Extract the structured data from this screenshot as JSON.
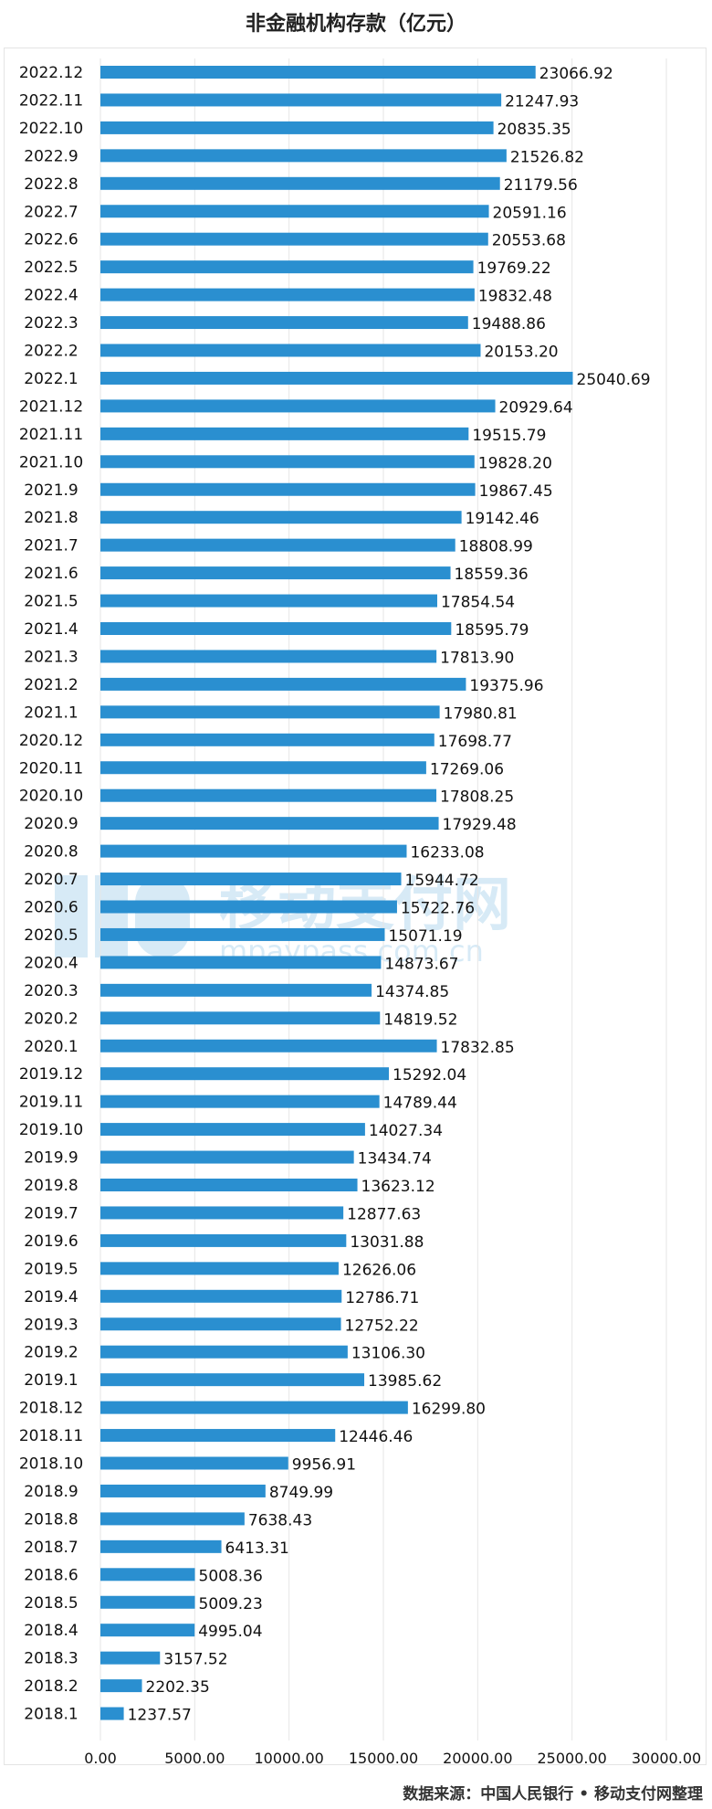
{
  "title": "非金融机构存款（亿元）",
  "source": "数据来源：中国人民银行 • 移动支付网整理",
  "watermark": {
    "brand": "移动支付网",
    "url": "mpaypass.com.cn"
  },
  "colors": {
    "bar": "#2a8fd0",
    "grid": "#e6e6e6",
    "text": "#111111"
  },
  "chart_data": {
    "type": "bar",
    "orientation": "horizontal",
    "categories": [
      "2022.12",
      "2022.11",
      "2022.10",
      "2022.9",
      "2022.8",
      "2022.7",
      "2022.6",
      "2022.5",
      "2022.4",
      "2022.3",
      "2022.2",
      "2022.1",
      "2021.12",
      "2021.11",
      "2021.10",
      "2021.9",
      "2021.8",
      "2021.7",
      "2021.6",
      "2021.5",
      "2021.4",
      "2021.3",
      "2021.2",
      "2021.1",
      "2020.12",
      "2020.11",
      "2020.10",
      "2020.9",
      "2020.8",
      "2020.7",
      "2020.6",
      "2020.5",
      "2020.4",
      "2020.3",
      "2020.2",
      "2020.1",
      "2019.12",
      "2019.11",
      "2019.10",
      "2019.9",
      "2019.8",
      "2019.7",
      "2019.6",
      "2019.5",
      "2019.4",
      "2019.3",
      "2019.2",
      "2019.1",
      "2018.12",
      "2018.11",
      "2018.10",
      "2018.9",
      "2018.8",
      "2018.7",
      "2018.6",
      "2018.5",
      "2018.4",
      "2018.3",
      "2018.2",
      "2018.1"
    ],
    "values": [
      23066.92,
      21247.93,
      20835.35,
      21526.82,
      21179.56,
      20591.16,
      20553.68,
      19769.22,
      19832.48,
      19488.86,
      20153.2,
      25040.69,
      20929.64,
      19515.79,
      19828.2,
      19867.45,
      19142.46,
      18808.99,
      18559.36,
      17854.54,
      18595.79,
      17813.9,
      19375.96,
      17980.81,
      17698.77,
      17269.06,
      17808.25,
      17929.48,
      16233.08,
      15944.72,
      15722.76,
      15071.19,
      14873.67,
      14374.85,
      14819.52,
      17832.85,
      15292.04,
      14789.44,
      14027.34,
      13434.74,
      13623.12,
      12877.63,
      13031.88,
      12626.06,
      12786.71,
      12752.22,
      13106.3,
      13985.62,
      16299.8,
      12446.46,
      9956.91,
      8749.99,
      7638.43,
      6413.31,
      5008.36,
      5009.23,
      4995.04,
      3157.52,
      2202.35,
      1237.57
    ],
    "value_labels": [
      "23066.92",
      "21247.93",
      "20835.35",
      "21526.82",
      "21179.56",
      "20591.16",
      "20553.68",
      "19769.22",
      "19832.48",
      "19488.86",
      "20153.20",
      "25040.69",
      "20929.64",
      "19515.79",
      "19828.20",
      "19867.45",
      "19142.46",
      "18808.99",
      "18559.36",
      "17854.54",
      "18595.79",
      "17813.90",
      "19375.96",
      "17980.81",
      "17698.77",
      "17269.06",
      "17808.25",
      "17929.48",
      "16233.08",
      "15944.72",
      "15722.76",
      "15071.19",
      "14873.67",
      "14374.85",
      "14819.52",
      "17832.85",
      "15292.04",
      "14789.44",
      "14027.34",
      "13434.74",
      "13623.12",
      "12877.63",
      "13031.88",
      "12626.06",
      "12786.71",
      "12752.22",
      "13106.30",
      "13985.62",
      "16299.80",
      "12446.46",
      "9956.91",
      "8749.99",
      "7638.43",
      "6413.31",
      "5008.36",
      "5009.23",
      "4995.04",
      "3157.52",
      "2202.35",
      "1237.57"
    ],
    "xlim": [
      0,
      30000
    ],
    "xticks": [
      0,
      5000,
      10000,
      15000,
      20000,
      25000,
      30000
    ],
    "xtick_labels": [
      "0.00",
      "5000.00",
      "10000.00",
      "15000.00",
      "20000.00",
      "25000.00",
      "30000.00"
    ],
    "grid": true,
    "legend": "none"
  }
}
